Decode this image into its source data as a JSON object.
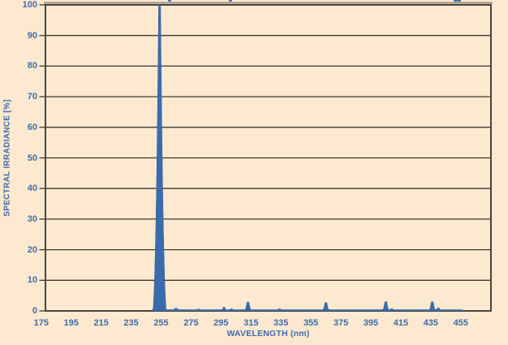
{
  "page": {
    "background_color": "#fce9d0",
    "label_color": "#3e6cab",
    "grid_color": "#3b372f",
    "border_color": "#4a453e",
    "series_color": "#3a6cad"
  },
  "chart_data": {
    "type": "area",
    "subtype": "emission-line-spectrum",
    "title": "",
    "xlabel": "WAVELENGTH (nm)",
    "ylabel": "SPECTRAL IRRADIANCE [%]",
    "xlim": [
      175,
      475
    ],
    "ylim": [
      0,
      100
    ],
    "x_ticks": [
      175,
      195,
      215,
      235,
      255,
      275,
      295,
      315,
      335,
      355,
      375,
      395,
      415,
      435,
      455
    ],
    "y_ticks": [
      0,
      10,
      20,
      30,
      40,
      50,
      60,
      70,
      80,
      90,
      100
    ],
    "grid": "horizontal gridlines every 10%, dark, on",
    "legend": "none",
    "series": [
      {
        "name": "spectral irradiance",
        "color": "#3a6cad",
        "baseline_percent": 0,
        "baseline_from_nm": 249,
        "baseline_to_nm": 456,
        "peaks": [
          {
            "nm": 254,
            "percent": 100,
            "base_width_nm": 9
          },
          {
            "nm": 265,
            "percent": 0.9,
            "base_width_nm": 5
          },
          {
            "nm": 280,
            "percent": 0.6,
            "base_width_nm": 5
          },
          {
            "nm": 297,
            "percent": 1.2,
            "base_width_nm": 4
          },
          {
            "nm": 302,
            "percent": 0.7,
            "base_width_nm": 4
          },
          {
            "nm": 313,
            "percent": 2.9,
            "base_width_nm": 5
          },
          {
            "nm": 334,
            "percent": 0.7,
            "base_width_nm": 4
          },
          {
            "nm": 365,
            "percent": 2.7,
            "base_width_nm": 5
          },
          {
            "nm": 405,
            "percent": 3.0,
            "base_width_nm": 5
          },
          {
            "nm": 409,
            "percent": 0.8,
            "base_width_nm": 3
          },
          {
            "nm": 436,
            "percent": 3.0,
            "base_width_nm": 5
          },
          {
            "nm": 440,
            "percent": 1.0,
            "base_width_nm": 4
          }
        ]
      }
    ]
  }
}
